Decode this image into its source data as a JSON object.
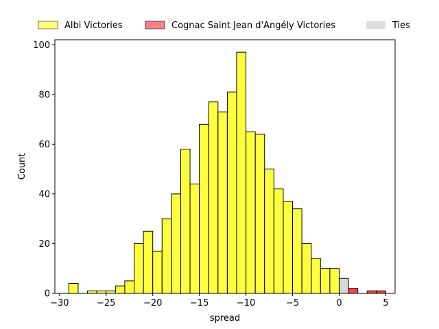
{
  "chart_data": {
    "type": "bar",
    "xlabel": "spread",
    "ylabel": "Count",
    "xlim": [
      -30.5,
      6
    ],
    "ylim": [
      0,
      102
    ],
    "xticks": [
      -30,
      -25,
      -20,
      -15,
      -10,
      -5,
      0,
      5
    ],
    "yticks": [
      0,
      20,
      40,
      60,
      80,
      100
    ],
    "grid": false,
    "legend_position": "top",
    "bin_width": 1,
    "series": [
      {
        "name": "Albi Victories",
        "color": "#ffff00",
        "legend_color": "#ffff80",
        "bins": [
          {
            "x0": -29,
            "x1": -28,
            "count": 4
          },
          {
            "x0": -27,
            "x1": -26,
            "count": 1
          },
          {
            "x0": -26,
            "x1": -25,
            "count": 1
          },
          {
            "x0": -25,
            "x1": -24,
            "count": 1
          },
          {
            "x0": -24,
            "x1": -23,
            "count": 3
          },
          {
            "x0": -23,
            "x1": -22,
            "count": 5
          },
          {
            "x0": -22,
            "x1": -21,
            "count": 20
          },
          {
            "x0": -21,
            "x1": -20,
            "count": 25
          },
          {
            "x0": -20,
            "x1": -19,
            "count": 17
          },
          {
            "x0": -19,
            "x1": -18,
            "count": 30
          },
          {
            "x0": -18,
            "x1": -17,
            "count": 40
          },
          {
            "x0": -17,
            "x1": -16,
            "count": 58
          },
          {
            "x0": -16,
            "x1": -15,
            "count": 44
          },
          {
            "x0": -15,
            "x1": -14,
            "count": 68
          },
          {
            "x0": -14,
            "x1": -13,
            "count": 77
          },
          {
            "x0": -13,
            "x1": -12,
            "count": 73
          },
          {
            "x0": -12,
            "x1": -11,
            "count": 81
          },
          {
            "x0": -11,
            "x1": -10,
            "count": 97
          },
          {
            "x0": -10,
            "x1": -9,
            "count": 65
          },
          {
            "x0": -9,
            "x1": -8,
            "count": 64
          },
          {
            "x0": -8,
            "x1": -7,
            "count": 50
          },
          {
            "x0": -7,
            "x1": -6,
            "count": 42
          },
          {
            "x0": -6,
            "x1": -5,
            "count": 37
          },
          {
            "x0": -5,
            "x1": -4,
            "count": 34
          },
          {
            "x0": -4,
            "x1": -3,
            "count": 20
          },
          {
            "x0": -3,
            "x1": -2,
            "count": 14
          },
          {
            "x0": -2,
            "x1": -1,
            "count": 10
          },
          {
            "x0": -1,
            "x1": 0,
            "count": 10
          }
        ]
      },
      {
        "name": "Cognac Saint Jean d'Angély Victories",
        "color": "#ff0000",
        "legend_color": "#ff8080",
        "bins": [
          {
            "x0": 1,
            "x1": 2,
            "count": 2
          },
          {
            "x0": 3,
            "x1": 4,
            "count": 1
          },
          {
            "x0": 4,
            "x1": 5,
            "count": 1
          }
        ]
      },
      {
        "name": "Ties",
        "color": "#c8c8c8",
        "legend_color": "#dddddd",
        "bins": [
          {
            "x0": 0,
            "x1": 1,
            "count": 6
          }
        ]
      }
    ]
  }
}
